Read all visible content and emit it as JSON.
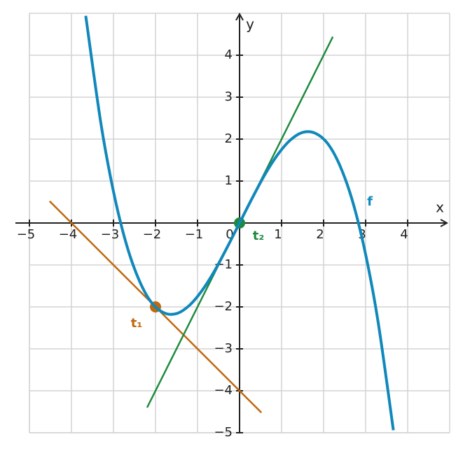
{
  "chart_data": {
    "type": "function-plot",
    "x_label": "x",
    "y_label": "y",
    "xlim": [
      -5,
      5
    ],
    "ylim": [
      -5,
      5
    ],
    "xticks": [
      {
        "value": -5,
        "label": "−5"
      },
      {
        "value": -4,
        "label": "−4"
      },
      {
        "value": -3,
        "label": "−3"
      },
      {
        "value": -2,
        "label": "−2"
      },
      {
        "value": -1,
        "label": "−1"
      },
      0,
      1,
      2,
      3,
      4
    ],
    "yticks": [
      {
        "value": -5,
        "label": "−5"
      },
      {
        "value": -4,
        "label": "−4"
      },
      {
        "value": -3,
        "label": "−3"
      },
      {
        "value": -2,
        "label": "−2"
      },
      {
        "value": -1,
        "label": "−1"
      },
      1,
      2,
      3,
      4
    ],
    "grid": true,
    "series": [
      {
        "name": "f",
        "color": "#1188bb",
        "smooth": true,
        "x": [
          -3.66,
          -3.3,
          -3.0,
          -2.7,
          -2.4,
          -2.1,
          -1.8,
          -1.5,
          -1.2,
          -0.9,
          -0.6,
          -0.3,
          0,
          0.3,
          0.6,
          0.9,
          1.2,
          1.5,
          1.8,
          2.1,
          2.4,
          2.7,
          3.0,
          3.3,
          3.66
        ],
        "values": [
          4.94,
          2.38,
          0.75,
          -0.48,
          -1.34,
          -1.89,
          -2.14,
          -2.16,
          -1.97,
          -1.62,
          -1.15,
          -0.59,
          0,
          0.59,
          1.15,
          1.62,
          1.97,
          2.16,
          2.14,
          1.89,
          1.34,
          0.48,
          -0.75,
          -2.38,
          -4.94
        ],
        "label_at": [
          3.1,
          0.5
        ]
      },
      {
        "name": "t₁",
        "color": "#c0680c",
        "x": [
          -4.52,
          0.52
        ],
        "values": [
          0.52,
          -4.52
        ],
        "point": [
          -2,
          -2
        ],
        "label_at": [
          -2.45,
          -2.4
        ]
      },
      {
        "name": "t₂",
        "color": "#1e8a3e",
        "x": [
          -2.2,
          2.22
        ],
        "values": [
          -4.4,
          4.44
        ],
        "point": [
          0,
          0
        ],
        "label_at": [
          0.45,
          -0.32
        ]
      }
    ]
  }
}
